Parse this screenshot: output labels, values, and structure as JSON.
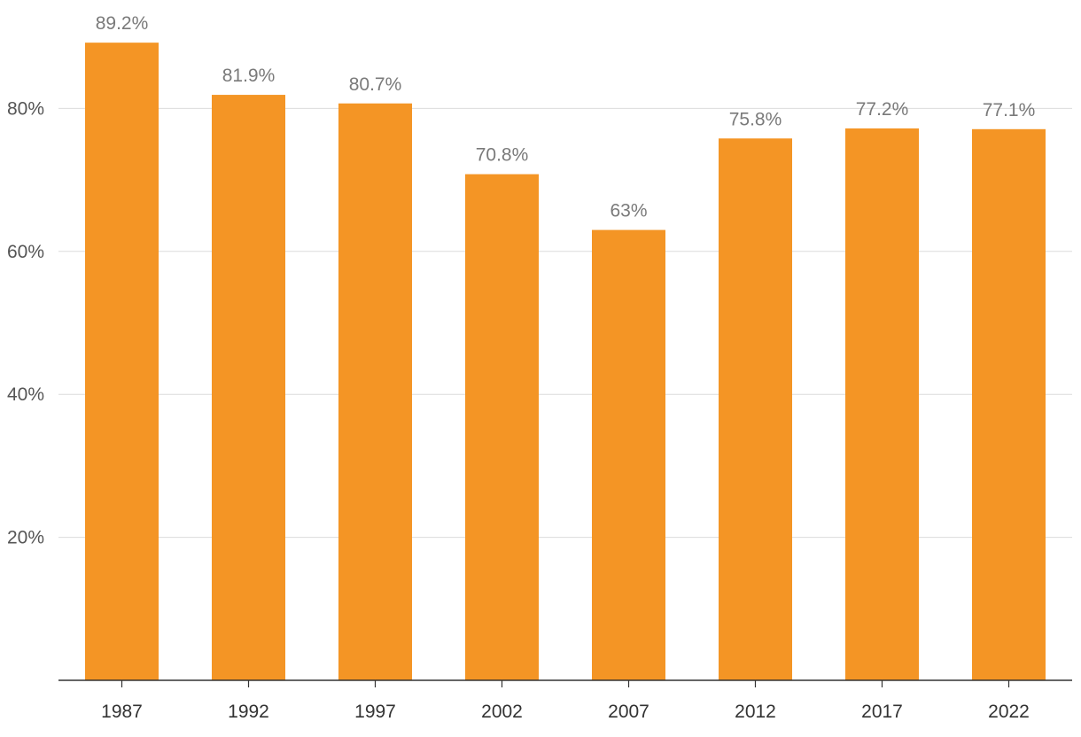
{
  "chart_data": {
    "type": "bar",
    "categories": [
      "1987",
      "1992",
      "1997",
      "2002",
      "2007",
      "2012",
      "2017",
      "2022"
    ],
    "values": [
      89.2,
      81.9,
      80.7,
      70.8,
      63,
      75.8,
      77.2,
      77.1
    ],
    "data_labels": [
      "89.2%",
      "81.9%",
      "80.7%",
      "70.8%",
      "63%",
      "75.8%",
      "77.2%",
      "77.1%"
    ],
    "yticks": [
      20,
      40,
      60,
      80
    ],
    "ytick_labels": [
      "20%",
      "40%",
      "60%",
      "80%"
    ],
    "ylim": [
      0,
      95
    ],
    "grid": true,
    "legend": "none",
    "bar_color": "#f5a623",
    "bar_color_fill": "#f49525",
    "title": "",
    "xlabel": "",
    "ylabel": ""
  }
}
